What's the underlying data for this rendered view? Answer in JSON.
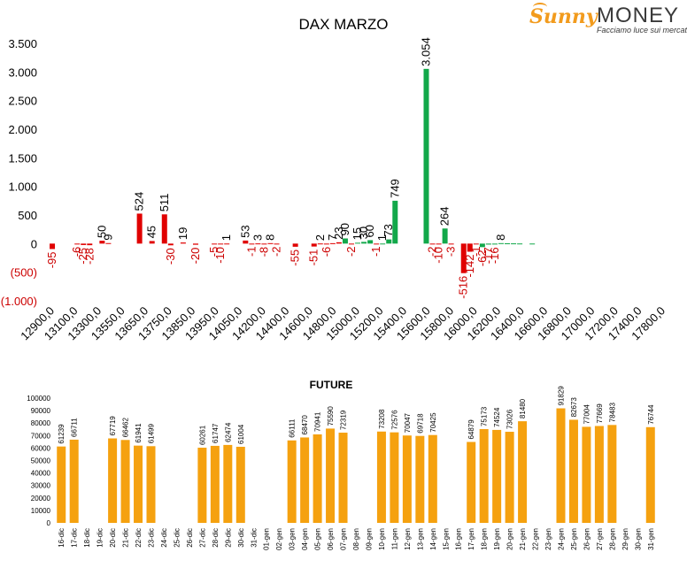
{
  "logo": {
    "brand_left": "Sunny",
    "brand_right": "MONEY",
    "tagline": "Facciamo luce sui mercati"
  },
  "colors": {
    "negative": "#e00000",
    "positive": "#12a84a",
    "future": "#f5a10f",
    "text": "#000000",
    "negtext": "#cc0000"
  },
  "chart_data": [
    {
      "type": "bar",
      "title": "DAX MARZO",
      "ylim": [
        -1000,
        3500
      ],
      "yticks": [
        -1000,
        -500,
        0,
        500,
        1000,
        1500,
        2000,
        2500,
        3000,
        3500
      ],
      "ytick_labels": [
        "(1.000)",
        "(500)",
        "0",
        "500",
        "1.000",
        "1.500",
        "2.000",
        "2.500",
        "3.000",
        "3.500"
      ],
      "xlim": [
        12900,
        17800
      ],
      "xtick_labels": [
        "12900,0",
        "13100,0",
        "13300,0",
        "13550,0",
        "13650,0",
        "13750,0",
        "13850,0",
        "13950,0",
        "14050,0",
        "14200,0",
        "14400,0",
        "14600,0",
        "14800,0",
        "15000,0",
        "15200,0",
        "15400,0",
        "15600,0",
        "15800,0",
        "16000,0",
        "16200,0",
        "16400,0",
        "16600,0",
        "16800,0",
        "17000,0",
        "17200,0",
        "17400,0",
        "17800,0"
      ],
      "x": [
        12950,
        13150,
        13200,
        13250,
        13350,
        13400,
        13650,
        13750,
        13850,
        13900,
        14000,
        14100,
        14250,
        14300,
        14350,
        14500,
        14550,
        14600,
        14650,
        14700,
        14750,
        14900,
        15050,
        15100,
        15150,
        15200,
        15250,
        15300,
        15350,
        15400,
        15450,
        15500,
        15550,
        15600,
        15650,
        15700,
        15950,
        16000,
        16050,
        16100,
        16150,
        16250,
        16300,
        16350,
        16400,
        16450,
        16500,
        16550,
        16600,
        16650,
        16700,
        16800
      ],
      "values": [
        -95,
        -6,
        -25,
        -28,
        50,
        9,
        524,
        45,
        511,
        -30,
        19,
        -20,
        -5,
        -10,
        1,
        53,
        -1,
        3,
        -8,
        8,
        -2,
        -55,
        -51,
        2,
        -6,
        7,
        23,
        90,
        -2,
        15,
        30,
        60,
        -1,
        1,
        73,
        749,
        3054,
        -2,
        -10,
        264,
        -3,
        -516,
        -142,
        -1,
        -62,
        -17,
        -16,
        8,
        5,
        4,
        2,
        1
      ],
      "labels": [
        "-95",
        "-6",
        "-25",
        "-28",
        "50",
        "9",
        "524",
        "45",
        "511",
        "-30",
        "19",
        "-20",
        "-5",
        "-10",
        "1",
        "53",
        "-1",
        "3",
        "-8",
        "8",
        "-2",
        "-55",
        "-51",
        "2",
        "-6",
        "7",
        "23",
        "90",
        "-2",
        "15",
        "30",
        "60",
        "-1",
        "1",
        "73",
        "749",
        "3.054",
        "-2",
        "-10",
        "264",
        "-3",
        "-516",
        "-142",
        "-1",
        "-62",
        "-17",
        "-16",
        "8",
        "",
        "",
        "",
        ""
      ],
      "series_colors": {
        "negative": "#e00000",
        "positive": "#12a84a"
      }
    },
    {
      "type": "bar",
      "title": "FUTURE",
      "ylim": [
        0,
        100000
      ],
      "yticks": [
        0,
        10000,
        20000,
        30000,
        40000,
        50000,
        60000,
        70000,
        80000,
        90000,
        100000
      ],
      "ytick_labels": [
        "0",
        "10000",
        "20000",
        "30000",
        "40000",
        "50000",
        "60000",
        "70000",
        "80000",
        "90000",
        "100000"
      ],
      "categories": [
        "16-dic",
        "17-dic",
        "18-dic",
        "19-dic",
        "20-dic",
        "21-dic",
        "22-dic",
        "23-dic",
        "24-dic",
        "25-dic",
        "26-dic",
        "27-dic",
        "28-dic",
        "29-dic",
        "30-dic",
        "31-dic",
        "01-gen",
        "02-gen",
        "03-gen",
        "04-gen",
        "05-gen",
        "06-gen",
        "07-gen",
        "08-gen",
        "09-gen",
        "10-gen",
        "11-gen",
        "12-gen",
        "13-gen",
        "14-gen",
        "15-gen",
        "16-gen",
        "17-gen",
        "18-gen",
        "19-gen",
        "20-gen",
        "21-gen",
        "22-gen",
        "23-gen",
        "24-gen",
        "25-gen",
        "26-gen",
        "27-gen",
        "28-gen",
        "29-gen",
        "30-gen",
        "31-gen"
      ],
      "values": [
        61239,
        66711,
        null,
        null,
        67719,
        66462,
        61941,
        61499,
        null,
        null,
        null,
        60261,
        61747,
        62474,
        61004,
        null,
        null,
        null,
        66111,
        68470,
        70941,
        75590,
        72319,
        null,
        null,
        73208,
        72576,
        70047,
        69718,
        70425,
        null,
        null,
        64879,
        75173,
        74524,
        73026,
        81480,
        null,
        null,
        91829,
        82673,
        77004,
        77669,
        78483,
        null,
        null,
        76744
      ],
      "series_color": "#f5a10f"
    }
  ]
}
